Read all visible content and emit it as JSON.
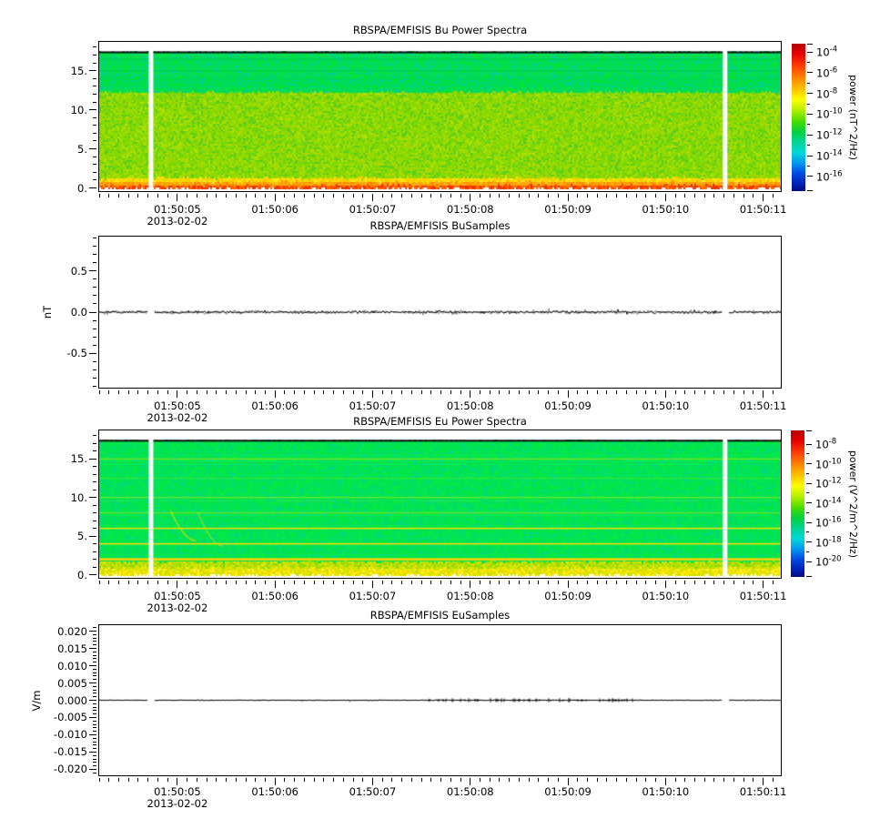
{
  "date": "2013-02-02",
  "time_axis": {
    "start": 4.19,
    "end": 11.19,
    "major_ticks": [
      5,
      6,
      7,
      8,
      9,
      10,
      11
    ],
    "major_labels": [
      "01:50:05",
      "01:50:06",
      "01:50:07",
      "01:50:08",
      "01:50:09",
      "01:50:10",
      "01:50:11"
    ],
    "minor_step": 0.1,
    "date_label": "2013-02-02"
  },
  "data_gaps": [
    4.73,
    10.61
  ],
  "chart_data": [
    {
      "id": "bu_power_spectra",
      "type": "spectrogram",
      "title": "RBSPA/EMFISIS  Bu Power Spectra",
      "ylim": [
        -0.52,
        18.8
      ],
      "data_top": 17.4,
      "yticks": [
        {
          "v": 15,
          "label": "15."
        },
        {
          "v": 10,
          "label": "10."
        },
        {
          "v": 5,
          "label": "5."
        },
        {
          "v": 0,
          "label": "0."
        }
      ],
      "y_minor": {
        "from": 0,
        "to": 18,
        "step": 1
      },
      "bands": [
        {
          "y0": 12.2,
          "y1": 17.35,
          "palette": [
            "#00e046",
            "#00d96e",
            "#00cf96",
            "#05e532",
            "#00db5a",
            "#00e046"
          ]
        },
        {
          "y0": 1.25,
          "y1": 12.2,
          "palette": [
            "#84d800",
            "#9cdc00",
            "#6fd310",
            "#b0e000",
            "#57cc20",
            "#a4d600",
            "#79dd00",
            "#8fd800"
          ]
        },
        {
          "y0": 0.75,
          "y1": 1.25,
          "palette": [
            "#ffdd00",
            "#f2cf00",
            "#ffd000",
            "#e8d800",
            "#ffe81e"
          ]
        },
        {
          "y0": 0.3,
          "y1": 0.75,
          "palette": [
            "#ff9d00",
            "#ff8a00",
            "#f9b000",
            "#ffa81e"
          ]
        },
        {
          "y0": -0.12,
          "y1": 0.3,
          "palette": [
            "#ff5a00",
            "#f23800",
            "#e82d00",
            "#ff6a00"
          ]
        }
      ],
      "hlines": [
        {
          "y": 17.35,
          "color": "#0a0a0a",
          "width": 2,
          "alpha": 1
        },
        {
          "y": 16.45,
          "color": "#00c247",
          "width": 1,
          "alpha": 0.7
        },
        {
          "y": 15.0,
          "color": "#00c247",
          "width": 1,
          "alpha": 0.6
        },
        {
          "y": 13.95,
          "color": "#00c955",
          "width": 1,
          "alpha": 0.5
        }
      ],
      "streaks": [
        {
          "t0": 6.35,
          "y0": 4.6,
          "t1": 8.75,
          "y1": 1.45,
          "color": "#cbd800",
          "alpha": 0.45,
          "width": 1.3
        }
      ],
      "colorbar": {
        "title": "power (nT^2/Hz)",
        "tick_labels": [
          "10^-4",
          "10^-6",
          "10^-8",
          "10^-10",
          "10^-12",
          "10^-14",
          "10^-16"
        ],
        "gradient": [
          [
            0,
            "#b40000"
          ],
          [
            0.07,
            "#e60000"
          ],
          [
            0.16,
            "#ff4400"
          ],
          [
            0.25,
            "#ff9400"
          ],
          [
            0.32,
            "#ffcc00"
          ],
          [
            0.38,
            "#fdff00"
          ],
          [
            0.45,
            "#b4f000"
          ],
          [
            0.53,
            "#46dc00"
          ],
          [
            0.6,
            "#00d044"
          ],
          [
            0.67,
            "#00d496"
          ],
          [
            0.74,
            "#00d8d8"
          ],
          [
            0.81,
            "#0096f0"
          ],
          [
            0.88,
            "#004ae0"
          ],
          [
            0.95,
            "#0020b4"
          ],
          [
            1,
            "#000a82"
          ]
        ]
      }
    },
    {
      "id": "bu_samples",
      "type": "line",
      "title": "RBSPA/EMFISIS  BuSamples",
      "ylabel": "nT",
      "ylim": [
        -0.93,
        0.93
      ],
      "yticks": [
        {
          "v": 0.5,
          "label": "0.5"
        },
        {
          "v": 0,
          "label": "0.0"
        },
        {
          "v": -0.5,
          "label": "-0.5"
        }
      ],
      "y_minor": {
        "from": -0.9,
        "to": 0.9,
        "step": 0.1
      },
      "baseline": 0.0,
      "noise_amplitude": 0.015,
      "line_color": "#000000"
    },
    {
      "id": "eu_power_spectra",
      "type": "spectrogram",
      "title": "RBSPA/EMFISIS  Eu Power Spectra",
      "ylim": [
        -0.52,
        18.8
      ],
      "data_top": 17.4,
      "yticks": [
        {
          "v": 15,
          "label": "15."
        },
        {
          "v": 10,
          "label": "10."
        },
        {
          "v": 5,
          "label": "5."
        },
        {
          "v": 0,
          "label": "0."
        }
      ],
      "y_minor": {
        "from": 0,
        "to": 18,
        "step": 1
      },
      "bands": [
        {
          "y0": 1.7,
          "y1": 17.35,
          "palette": [
            "#00e34d",
            "#00df63",
            "#09e93a",
            "#00d787",
            "#00ee41",
            "#00e556",
            "#00e34d"
          ]
        },
        {
          "y0": 0.85,
          "y1": 1.7,
          "palette": [
            "#c4e200",
            "#a6dc00",
            "#dde600",
            "#8ad800",
            "#b8e000"
          ]
        },
        {
          "y0": -0.12,
          "y1": 0.85,
          "palette": [
            "#f2e800",
            "#ffe300",
            "#d6e200",
            "#ffee32",
            "#e4de00",
            "#c8e000"
          ]
        }
      ],
      "hlines": [
        {
          "y": 17.35,
          "color": "#0a0a0a",
          "width": 2,
          "alpha": 1
        },
        {
          "y": 15,
          "color": "#c8e400",
          "width": 1,
          "alpha": 0.8
        },
        {
          "y": 12.5,
          "color": "#b2e200",
          "width": 1,
          "alpha": 0.35
        },
        {
          "y": 10,
          "color": "#d2e600",
          "width": 1,
          "alpha": 0.7
        },
        {
          "y": 8,
          "color": "#d2e600",
          "width": 1,
          "alpha": 0.6
        },
        {
          "y": 6,
          "color": "#ffe000",
          "width": 1.5,
          "alpha": 0.95
        },
        {
          "y": 4,
          "color": "#ffdd00",
          "width": 1.5,
          "alpha": 1
        },
        {
          "y": 2,
          "color": "#ffd200",
          "width": 2.5,
          "alpha": 1
        }
      ],
      "streaks": [
        {
          "t0": 4.92,
          "y0": 8.3,
          "t1": 5.18,
          "y1": 4.4,
          "color": "#e8d900",
          "alpha": 0.75,
          "width": 1.3
        },
        {
          "t0": 5.2,
          "y0": 8.1,
          "t1": 5.46,
          "y1": 3.7,
          "color": "#e8d900",
          "alpha": 0.6,
          "width": 1.2
        }
      ],
      "colorbar": {
        "title": "power (V^2/m^2/Hz)",
        "tick_labels": [
          "10^-8",
          "10^-10",
          "10^-12",
          "10^-14",
          "10^-16",
          "10^-18",
          "10^-20"
        ],
        "gradient": [
          [
            0,
            "#b40000"
          ],
          [
            0.07,
            "#e60000"
          ],
          [
            0.16,
            "#ff4400"
          ],
          [
            0.25,
            "#ff9400"
          ],
          [
            0.32,
            "#ffcc00"
          ],
          [
            0.38,
            "#fdff00"
          ],
          [
            0.45,
            "#b4f000"
          ],
          [
            0.53,
            "#46dc00"
          ],
          [
            0.6,
            "#00d044"
          ],
          [
            0.67,
            "#00d496"
          ],
          [
            0.74,
            "#00d8d8"
          ],
          [
            0.81,
            "#0096f0"
          ],
          [
            0.88,
            "#004ae0"
          ],
          [
            0.95,
            "#0020b4"
          ],
          [
            1,
            "#000a82"
          ]
        ]
      }
    },
    {
      "id": "eu_samples",
      "type": "line",
      "title": "RBSPA/EMFISIS  EuSamples",
      "ylabel": "V/m",
      "ylim": [
        -0.022,
        0.022
      ],
      "yticks": [
        {
          "v": 0.02,
          "label": "0.020"
        },
        {
          "v": 0.015,
          "label": "0.015"
        },
        {
          "v": 0.01,
          "label": "0.010"
        },
        {
          "v": 0.005,
          "label": "0.005"
        },
        {
          "v": 0,
          "label": "0.000"
        },
        {
          "v": -0.005,
          "label": "-0.005"
        },
        {
          "v": -0.01,
          "label": "-0.010"
        },
        {
          "v": -0.015,
          "label": "-0.015"
        },
        {
          "v": -0.02,
          "label": "-0.020"
        }
      ],
      "y_minor": {
        "from": -0.021,
        "to": 0.021,
        "step": 0.001
      },
      "baseline": 0.0,
      "noise_amplitude": 0.0001,
      "burst": {
        "t0": 7.55,
        "t1": 9.65,
        "amplitude": 0.0005
      },
      "dots": {
        "t0": 4.95,
        "t1": 7.55,
        "probability": 0.02
      },
      "line_color": "#000000"
    }
  ]
}
